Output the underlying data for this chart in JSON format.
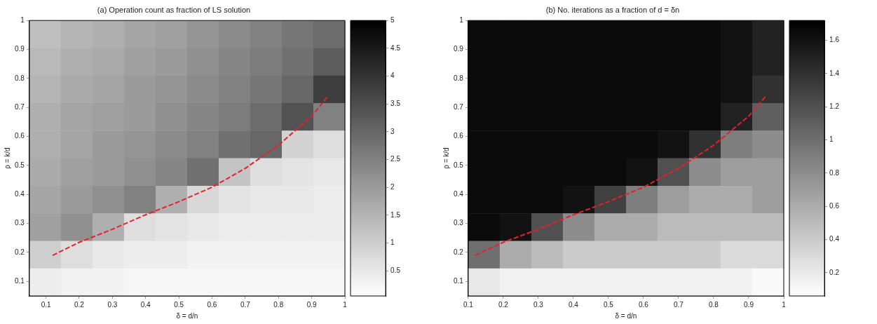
{
  "chart_data": [
    {
      "type": "heatmap",
      "title": "(a) Operation count as fraction of LS solution",
      "xlabel": "δ = d/n",
      "ylabel": "ρ = k/d",
      "cells": [
        [
          1.3,
          1.5,
          1.6,
          1.8,
          1.9,
          2.1,
          2.3,
          2.5,
          2.7,
          2.9
        ],
        [
          1.4,
          1.6,
          1.7,
          1.9,
          2.0,
          2.2,
          2.4,
          2.6,
          2.8,
          3.2
        ],
        [
          1.5,
          1.7,
          1.8,
          2.0,
          2.1,
          2.3,
          2.5,
          2.7,
          3.0,
          3.8
        ],
        [
          1.6,
          1.8,
          1.9,
          2.0,
          2.2,
          2.4,
          2.6,
          2.9,
          3.4,
          2.5
        ],
        [
          1.6,
          1.8,
          2.0,
          2.1,
          2.3,
          2.5,
          2.8,
          3.0,
          0.9,
          0.7
        ],
        [
          1.7,
          1.9,
          2.0,
          2.2,
          2.4,
          2.8,
          1.2,
          0.7,
          0.6,
          0.5
        ],
        [
          1.8,
          2.0,
          2.2,
          2.5,
          1.6,
          0.8,
          0.6,
          0.5,
          0.5,
          0.4
        ],
        [
          1.9,
          2.2,
          1.6,
          0.7,
          0.6,
          0.5,
          0.4,
          0.4,
          0.4,
          0.4
        ],
        [
          1.0,
          0.7,
          0.5,
          0.4,
          0.4,
          0.3,
          0.3,
          0.3,
          0.3,
          0.3
        ],
        [
          0.4,
          0.3,
          0.3,
          0.2,
          0.2,
          0.2,
          0.2,
          0.2,
          0.2,
          0.2
        ]
      ],
      "clim": [
        0.05,
        5
      ],
      "cticks": [
        0.5,
        1,
        1.5,
        2,
        2.5,
        3,
        3.5,
        4,
        4.5,
        5
      ],
      "xlim": [
        0.05,
        1
      ],
      "xticks": [
        0.1,
        0.2,
        0.3,
        0.4,
        0.5,
        0.6,
        0.7,
        0.8,
        0.9,
        1
      ],
      "ylim": [
        0.05,
        1
      ],
      "yticks": [
        0.1,
        0.2,
        0.3,
        0.4,
        0.5,
        0.6,
        0.7,
        0.8,
        0.9,
        1
      ],
      "series": [
        {
          "type": "line",
          "color": "#e8202a",
          "line_style": "dashed",
          "x": [
            0.12,
            0.2,
            0.3,
            0.4,
            0.5,
            0.6,
            0.7,
            0.8,
            0.85,
            0.9,
            0.95
          ],
          "values": [
            0.19,
            0.235,
            0.28,
            0.33,
            0.375,
            0.425,
            0.49,
            0.57,
            0.62,
            0.67,
            0.74
          ]
        }
      ]
    },
    {
      "type": "heatmap",
      "title": "(b) No. iterations as a fraction of d = δn",
      "xlabel": "δ = d/n",
      "ylabel": "ρ = k/d",
      "cells": [
        [
          1.65,
          1.65,
          1.65,
          1.65,
          1.65,
          1.65,
          1.65,
          1.65,
          1.6,
          1.5
        ],
        [
          1.65,
          1.65,
          1.65,
          1.65,
          1.65,
          1.65,
          1.65,
          1.65,
          1.6,
          1.5
        ],
        [
          1.65,
          1.65,
          1.65,
          1.65,
          1.65,
          1.65,
          1.65,
          1.65,
          1.6,
          1.4
        ],
        [
          1.65,
          1.65,
          1.65,
          1.65,
          1.65,
          1.65,
          1.65,
          1.65,
          1.5,
          1.1
        ],
        [
          1.65,
          1.65,
          1.65,
          1.65,
          1.65,
          1.65,
          1.6,
          1.4,
          0.9,
          0.8
        ],
        [
          1.65,
          1.65,
          1.65,
          1.65,
          1.65,
          1.6,
          1.2,
          0.8,
          0.7,
          0.7
        ],
        [
          1.65,
          1.65,
          1.65,
          1.6,
          1.3,
          0.9,
          0.7,
          0.6,
          0.6,
          0.7
        ],
        [
          1.65,
          1.6,
          1.2,
          0.8,
          0.6,
          0.6,
          0.5,
          0.5,
          0.5,
          0.5
        ],
        [
          1.0,
          0.6,
          0.5,
          0.4,
          0.4,
          0.4,
          0.4,
          0.4,
          0.3,
          0.3
        ],
        [
          0.2,
          0.15,
          0.15,
          0.15,
          0.15,
          0.15,
          0.15,
          0.15,
          0.15,
          0.1
        ]
      ],
      "clim": [
        0.06,
        1.72
      ],
      "cticks": [
        0.2,
        0.4,
        0.6,
        0.8,
        1,
        1.2,
        1.4,
        1.6
      ],
      "xlim": [
        0.1,
        1
      ],
      "xticks": [
        0.1,
        0.2,
        0.3,
        0.4,
        0.5,
        0.6,
        0.7,
        0.8,
        0.9,
        1
      ],
      "ylim": [
        0.05,
        1
      ],
      "yticks": [
        0.1,
        0.2,
        0.3,
        0.4,
        0.5,
        0.6,
        0.7,
        0.8,
        0.9,
        1
      ],
      "series": [
        {
          "type": "line",
          "color": "#e8202a",
          "line_style": "dashed",
          "x": [
            0.12,
            0.2,
            0.3,
            0.4,
            0.5,
            0.6,
            0.7,
            0.8,
            0.85,
            0.9,
            0.95
          ],
          "values": [
            0.19,
            0.235,
            0.28,
            0.33,
            0.375,
            0.425,
            0.49,
            0.57,
            0.62,
            0.67,
            0.74
          ]
        }
      ]
    }
  ]
}
